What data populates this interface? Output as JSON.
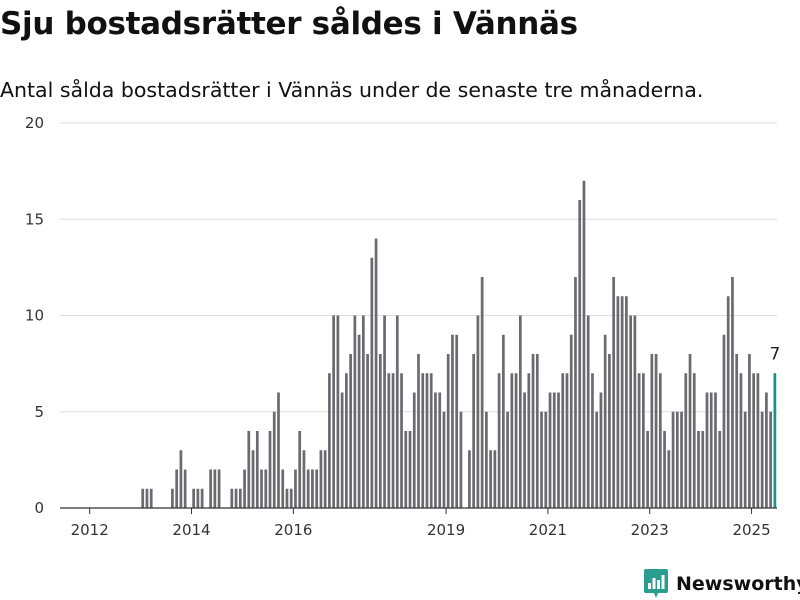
{
  "header": {
    "title": "Sju bostadsrätter såldes i Vännäs",
    "subtitle": "Antal sålda bostadsrätter i Vännäs under de senaste tre månaderna."
  },
  "chart_data": {
    "type": "bar",
    "title": "Sju bostadsrätter såldes i Vännäs",
    "subtitle": "Antal sålda bostadsrätter i Vännäs under de senaste tre månaderna.",
    "xlabel": "",
    "ylabel": "",
    "ylim": [
      0,
      20
    ],
    "yticks": [
      0,
      5,
      10,
      15,
      20
    ],
    "xticks": [
      "2012",
      "2014",
      "2016",
      "2019",
      "2021",
      "2023",
      "2025"
    ],
    "x_start": "2011-06",
    "x_end": "2025-06",
    "grid": "horizontal",
    "legend": "none",
    "colors": {
      "bars": "#6b6a71",
      "highlight": "#15968b"
    },
    "last_value_label": "7",
    "values": [
      0,
      0,
      0,
      0,
      0,
      0,
      0,
      0,
      0,
      0,
      0,
      0,
      0,
      0,
      0,
      0,
      0,
      0,
      0,
      0,
      0,
      0,
      0,
      1,
      1,
      1,
      0,
      0,
      0,
      0,
      1,
      2,
      3,
      2,
      0,
      1,
      1,
      1,
      0,
      2,
      2,
      2,
      0,
      0,
      1,
      1,
      1,
      2,
      4,
      3,
      4,
      2,
      2,
      4,
      5,
      6,
      2,
      1,
      1,
      2,
      4,
      3,
      2,
      2,
      2,
      3,
      3,
      7,
      10,
      10,
      6,
      7,
      8,
      10,
      9,
      10,
      8,
      13,
      14,
      8,
      10,
      7,
      7,
      10,
      7,
      4,
      4,
      6,
      8,
      7,
      7,
      7,
      6,
      6,
      5,
      8,
      9,
      9,
      5,
      0,
      3,
      8,
      10,
      12,
      5,
      3,
      3,
      7,
      9,
      5,
      7,
      7,
      10,
      6,
      7,
      8,
      8,
      5,
      5,
      6,
      6,
      6,
      7,
      7,
      9,
      12,
      16,
      17,
      10,
      7,
      5,
      6,
      9,
      8,
      12,
      11,
      11,
      11,
      10,
      10,
      7,
      7,
      4,
      8,
      8,
      7,
      4,
      3,
      5,
      5,
      5,
      7,
      8,
      7,
      4,
      4,
      6,
      6,
      6,
      4,
      9,
      11,
      12,
      8,
      7,
      5,
      8,
      7,
      7,
      5,
      6,
      5,
      7
    ]
  },
  "branding": {
    "name": "Newsworthy",
    "logo_color": "#2a9d8f"
  }
}
